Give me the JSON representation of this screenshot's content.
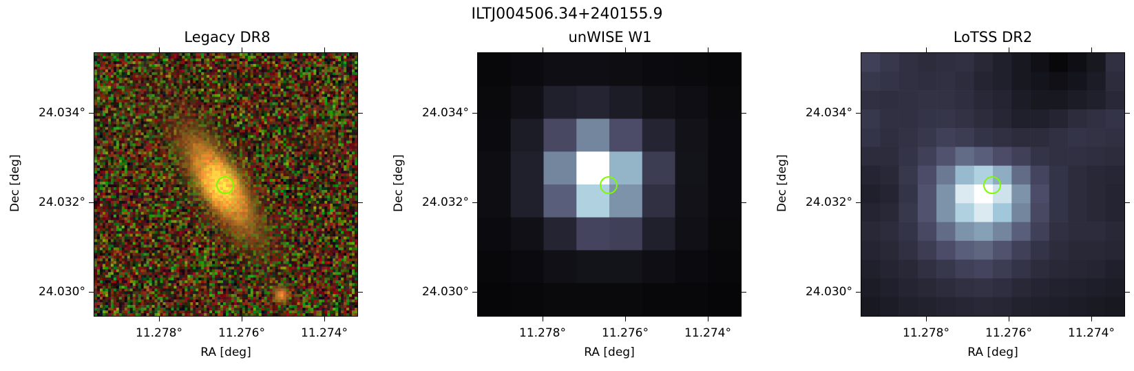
{
  "figure": {
    "title": "ILTJ004506.34+240155.9"
  },
  "panels": [
    {
      "title": "Legacy DR8",
      "xticks": [
        "11.278°",
        "11.276°",
        "11.274°"
      ],
      "yticks": [
        "24.034°",
        "24.032°",
        "24.030°"
      ],
      "xlabel": "RA [deg]",
      "ylabel": "Dec [deg]",
      "image": "optical rgb cutout"
    },
    {
      "title": "unWISE W1",
      "xticks": [
        "11.278°",
        "11.276°",
        "11.274°"
      ],
      "yticks": [
        "24.034°",
        "24.032°",
        "24.030°"
      ],
      "xlabel": "RA [deg]",
      "ylabel": "Dec [deg]",
      "image": "infrared greyscale cutout"
    },
    {
      "title": "LoTSS DR2",
      "xticks": [
        "11.278°",
        "11.276°",
        "11.274°"
      ],
      "yticks": [
        "24.034°",
        "24.032°",
        "24.030°"
      ],
      "xlabel": "RA [deg]",
      "ylabel": "Dec [deg]",
      "image": "radio greyscale cutout"
    }
  ],
  "marker": {
    "shape": "circle",
    "color": "#7cfc00"
  }
}
